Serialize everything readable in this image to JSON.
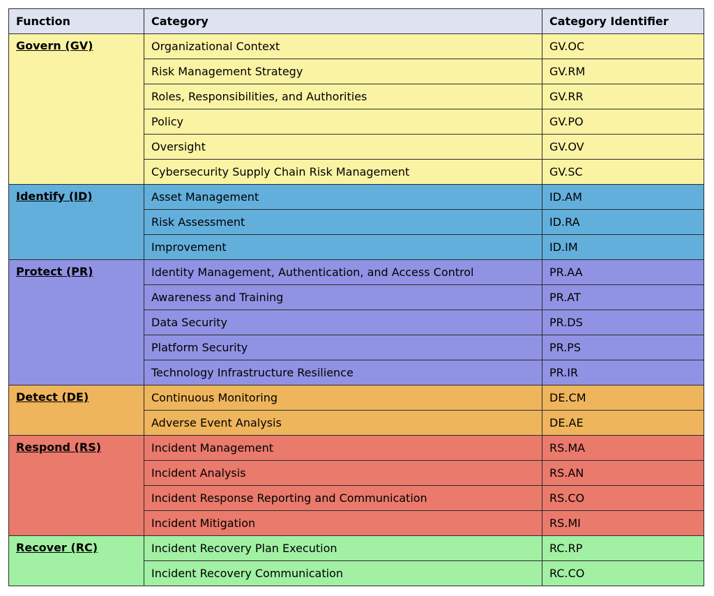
{
  "header": {
    "function": "Function",
    "category": "Category",
    "identifier": "Category Identifier",
    "color": "#dde3f1"
  },
  "functions": [
    {
      "name": "Govern (GV)",
      "color": "#fbf3a4",
      "categories": [
        {
          "name": "Organizational Context",
          "id": "GV.OC"
        },
        {
          "name": "Risk Management Strategy",
          "id": "GV.RM"
        },
        {
          "name": "Roles, Responsibilities, and Authorities",
          "id": "GV.RR"
        },
        {
          "name": "Policy",
          "id": "GV.PO"
        },
        {
          "name": "Oversight",
          "id": "GV.OV"
        },
        {
          "name": "Cybersecurity Supply Chain Risk Management",
          "id": "GV.SC"
        }
      ]
    },
    {
      "name": "Identify (ID)",
      "color": "#63afdc",
      "categories": [
        {
          "name": "Asset Management",
          "id": "ID.AM"
        },
        {
          "name": "Risk Assessment",
          "id": "ID.RA"
        },
        {
          "name": "Improvement",
          "id": "ID.IM"
        }
      ]
    },
    {
      "name": "Protect (PR)",
      "color": "#9093e4",
      "categories": [
        {
          "name": "Identity Management, Authentication, and Access Control",
          "id": "PR.AA"
        },
        {
          "name": "Awareness and Training",
          "id": "PR.AT"
        },
        {
          "name": "Data Security",
          "id": "PR.DS"
        },
        {
          "name": "Platform Security",
          "id": "PR.PS"
        },
        {
          "name": "Technology Infrastructure Resilience",
          "id": "PR.IR"
        }
      ]
    },
    {
      "name": "Detect (DE)",
      "color": "#eeb55c",
      "categories": [
        {
          "name": "Continuous Monitoring",
          "id": "DE.CM"
        },
        {
          "name": "Adverse Event Analysis",
          "id": "DE.AE"
        }
      ]
    },
    {
      "name": "Respond (RS)",
      "color": "#e97a6c",
      "categories": [
        {
          "name": "Incident Management",
          "id": "RS.MA"
        },
        {
          "name": "Incident Analysis",
          "id": "RS.AN"
        },
        {
          "name": "Incident Response Reporting and Communication",
          "id": "RS.CO"
        },
        {
          "name": "Incident Mitigation",
          "id": "RS.MI"
        }
      ]
    },
    {
      "name": "Recover (RC)",
      "color": "#a1f0a3",
      "categories": [
        {
          "name": "Incident Recovery Plan Execution",
          "id": "RC.RP"
        },
        {
          "name": "Incident Recovery Communication",
          "id": "RC.CO"
        }
      ]
    }
  ]
}
